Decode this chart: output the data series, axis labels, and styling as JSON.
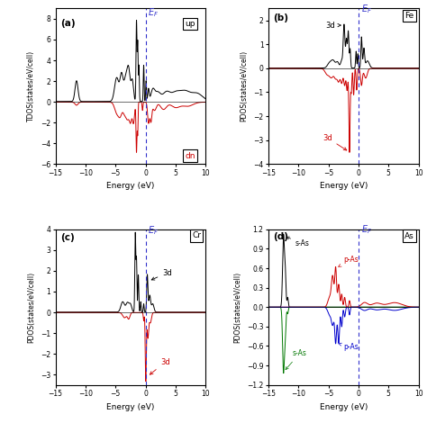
{
  "fig_size": [
    4.74,
    4.7
  ],
  "dpi": 100,
  "xlim": [
    -15,
    10
  ],
  "xlabel": "Energy (eV)",
  "ylabel_a": "TDOS(states/eV/cell)",
  "ylabel_bcd": "PDOS(states/eV/cell)",
  "ylim_a": [
    -6,
    9
  ],
  "ylim_b": [
    -4,
    2.5
  ],
  "ylim_c": [
    -3.5,
    4
  ],
  "ylim_d": [
    -1.2,
    1.2
  ],
  "yticks_a": [
    -6,
    -4,
    -2,
    0,
    2,
    4,
    6,
    8
  ],
  "yticks_b": [
    -4,
    -3,
    -2,
    -1,
    0,
    1,
    2
  ],
  "yticks_c": [
    -3,
    -2,
    -1,
    0,
    1,
    2,
    3,
    4
  ],
  "yticks_d": [
    -1.2,
    -0.9,
    -0.6,
    -0.3,
    0,
    0.3,
    0.6,
    0.9,
    1.2
  ],
  "xticks": [
    -15,
    -10,
    -5,
    0,
    5,
    10
  ],
  "ef_line_color": "#3333CC",
  "black_color": "#000000",
  "red_color": "#CC0000",
  "green_color": "#007700",
  "blue_color": "#0000CC",
  "label_fe": "Fe",
  "label_cr": "Cr",
  "label_as": "As"
}
